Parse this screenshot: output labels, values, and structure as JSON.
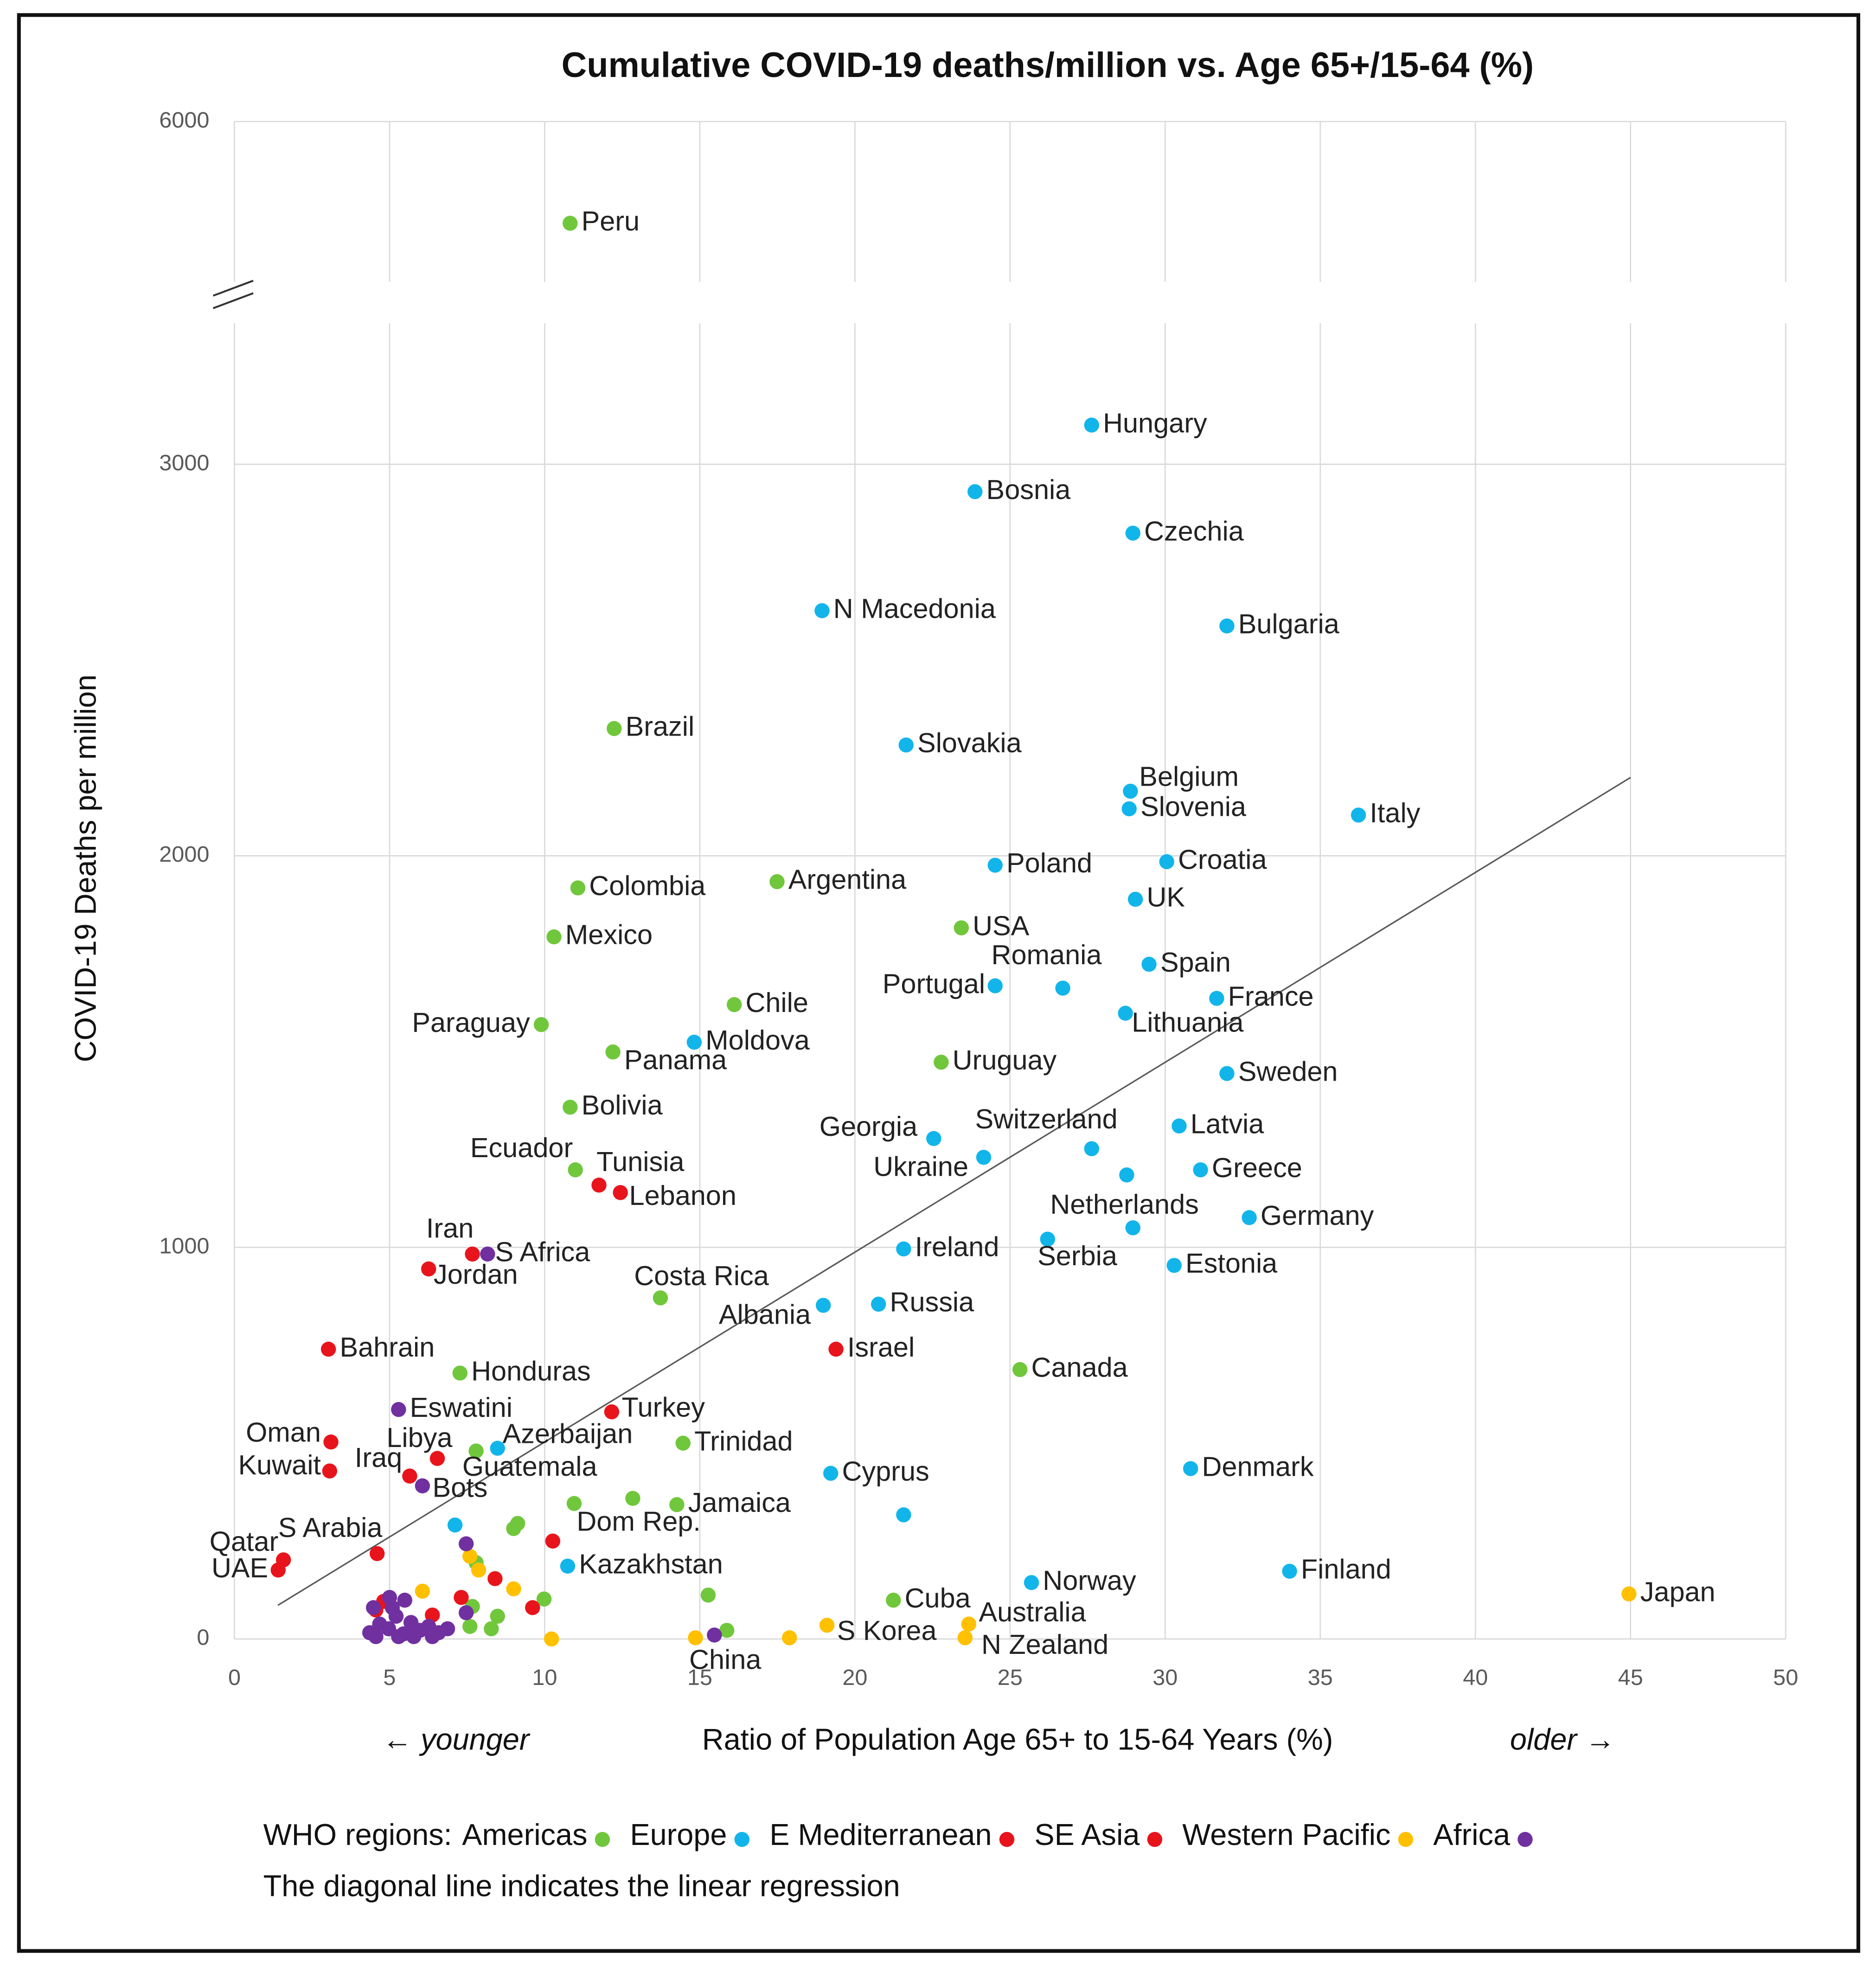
{
  "chart_data": {
    "type": "scatter",
    "title": "Cumulative COVID-19 deaths/million vs. Age 65+/15-64 (%)",
    "xlabel": "Ratio of Population Age 65+ to 15-64 Years (%)",
    "ylabel": "COVID-19 Deaths per million",
    "annotation_left": "← younger",
    "annotation_right": "older →",
    "legend_title": "WHO regions:",
    "note": "The diagonal line indicates the linear regression",
    "xlim": [
      0,
      50
    ],
    "xticks": [
      0,
      5,
      10,
      15,
      20,
      25,
      30,
      35,
      40,
      45,
      50
    ],
    "ylim": [
      0,
      3360
    ],
    "yticks": [
      0,
      1000,
      2000,
      3000
    ],
    "ylim_upper": [
      5590,
      6000
    ],
    "yticks_upper": [
      6000
    ],
    "axis_break": true,
    "grid": true,
    "regression": {
      "x": [
        1.4,
        45
      ],
      "y": [
        86,
        2200
      ],
      "color": "#595959"
    },
    "series": [
      {
        "name": "Americas",
        "color": "#70c73c",
        "x": [
          10.82,
          12.24,
          11.07,
          10.3,
          17.49,
          16.11,
          9.89,
          12.2,
          10.82,
          10.99,
          23.43,
          22.78,
          13.73,
          7.27,
          25.32,
          14.46,
          7.79,
          14.26,
          10.95,
          21.24,
          12.84,
          9.13,
          9.0,
          7.79,
          7.67,
          8.28,
          8.48,
          9.98,
          15.27,
          15.87,
          7.59
        ],
        "values": [
          5740,
          2325,
          1918,
          1793,
          1934,
          1620,
          1569,
          1499,
          1358,
          1198,
          1816,
          1473,
          871,
          679,
          688,
          500,
          480,
          343,
          346,
          99,
          359,
          295,
          282,
          195,
          83,
          26,
          58,
          102,
          112,
          22,
          32
        ],
        "labels": [
          "Peru",
          "Brazil",
          "Colombia",
          "Mexico",
          "Argentina",
          "Chile",
          "Paraguay",
          "Panama",
          "Bolivia",
          "Ecuador",
          "USA",
          "Uruguay",
          "Costa Rica",
          "Honduras",
          "Canada",
          "Trinidad",
          "Guatemala",
          "Jamaica",
          "Dom Rep.",
          "Cuba",
          null,
          null,
          null,
          null,
          null,
          null,
          null,
          null,
          null,
          null,
          null
        ]
      },
      {
        "name": "Europe",
        "color": "#12b5ea",
        "x": [
          27.63,
          23.87,
          28.96,
          18.94,
          31.99,
          21.65,
          28.88,
          28.84,
          36.23,
          24.52,
          30.05,
          29.04,
          26.7,
          24.52,
          29.48,
          31.66,
          28.72,
          14.82,
          31.99,
          22.54,
          27.63,
          30.45,
          24.15,
          31.14,
          28.76,
          28.96,
          32.71,
          26.21,
          30.29,
          21.57,
          20.76,
          18.98,
          8.48,
          19.22,
          30.82,
          21.57,
          7.11,
          10.74,
          25.69,
          34.01
        ],
        "values": [
          3100,
          2930,
          2824,
          2626,
          2587,
          2283,
          2165,
          2120,
          2104,
          1976,
          1985,
          1889,
          1662,
          1668,
          1723,
          1636,
          1598,
          1524,
          1444,
          1278,
          1252,
          1310,
          1230,
          1198,
          1185,
          1050,
          1076,
          1021,
          954,
          996,
          855,
          852,
          487,
          423,
          435,
          317,
          291,
          186,
          144,
          173
        ],
        "labels": [
          "Hungary",
          "Bosnia",
          "Czechia",
          "N Macedonia",
          "Bulgaria",
          "Slovakia",
          "Belgium",
          "Slovenia",
          "Italy",
          "Poland",
          "Croatia",
          "UK",
          "Romania",
          "Portugal",
          "Spain",
          "France",
          "Lithuania",
          "Moldova",
          "Sweden",
          "Georgia",
          "Switzerland",
          "Latvia",
          "Ukraine",
          "Greece",
          null,
          "Netherlands",
          "Germany",
          "Serbia",
          "Estonia",
          "Ireland",
          "Russia",
          "Albania",
          "Azerbaijan",
          "Cyprus",
          "Denmark",
          null,
          null,
          "Kazakhstan",
          "Norway",
          "Finland"
        ]
      },
      {
        "name": "E Mediterranean",
        "color": "#e8141c",
        "x": [
          11.75,
          12.44,
          7.67,
          6.26,
          3.03,
          3.11,
          6.54,
          5.65,
          3.07,
          1.58,
          1.41,
          4.6,
          12.16,
          19.39,
          10.26,
          8.4,
          9.61,
          7.31
        ],
        "values": [
          1159,
          1140,
          983,
          945,
          740,
          503,
          461,
          416,
          429,
          202,
          176,
          218,
          580,
          740,
          250,
          154,
          80,
          106
        ],
        "labels": [
          "Tunisia",
          "Lebanon",
          "Iran",
          "Jordan",
          "Bahrain",
          "Oman",
          "Libya",
          "Iraq",
          "Kuwait",
          "Qatar",
          "UAE",
          "S Arabia",
          "Turkey",
          "Israel",
          null,
          null,
          null,
          null
        ]
      },
      {
        "name": "SE Asia",
        "color": "#e8141c",
        "x": [
          4.81,
          4.56,
          6.38
        ],
        "values": [
          96,
          74,
          61
        ],
        "labels": [
          null,
          null,
          null
        ]
      },
      {
        "name": "Western Pacific",
        "color": "#ffc000",
        "x": [
          44.95,
          23.67,
          23.55,
          19.1,
          14.86,
          17.89,
          10.22,
          7.59,
          7.87,
          9.0,
          6.06
        ],
        "values": [
          115,
          38,
          3,
          35,
          3,
          3,
          0,
          211,
          176,
          128,
          122
        ],
        "labels": [
          "Japan",
          "Australia",
          "N Zealand",
          "S Korea",
          "China",
          null,
          null,
          null,
          null,
          null,
          null
        ]
      },
      {
        "name": "Africa",
        "color": "#7030a0",
        "x": [
          8.16,
          5.29,
          6.06,
          7.47,
          7.47,
          5.0,
          5.49,
          15.47,
          4.36,
          4.68,
          4.97,
          5.21,
          5.45,
          5.69,
          5.98,
          6.26,
          6.58,
          6.87,
          4.56,
          5.29,
          5.78,
          6.38,
          4.48,
          5.09
        ],
        "values": [
          983,
          586,
          391,
          243,
          67,
          106,
          99,
          10,
          16,
          38,
          26,
          58,
          13,
          42,
          22,
          32,
          16,
          26,
          6,
          6,
          6,
          6,
          80,
          80
        ],
        "labels": [
          "S Africa",
          "Eswatini",
          "Bots",
          null,
          null,
          null,
          null,
          null,
          null,
          null,
          null,
          null,
          null,
          null,
          null,
          null,
          null,
          null,
          null,
          null,
          null,
          null,
          null,
          null
        ]
      }
    ]
  }
}
